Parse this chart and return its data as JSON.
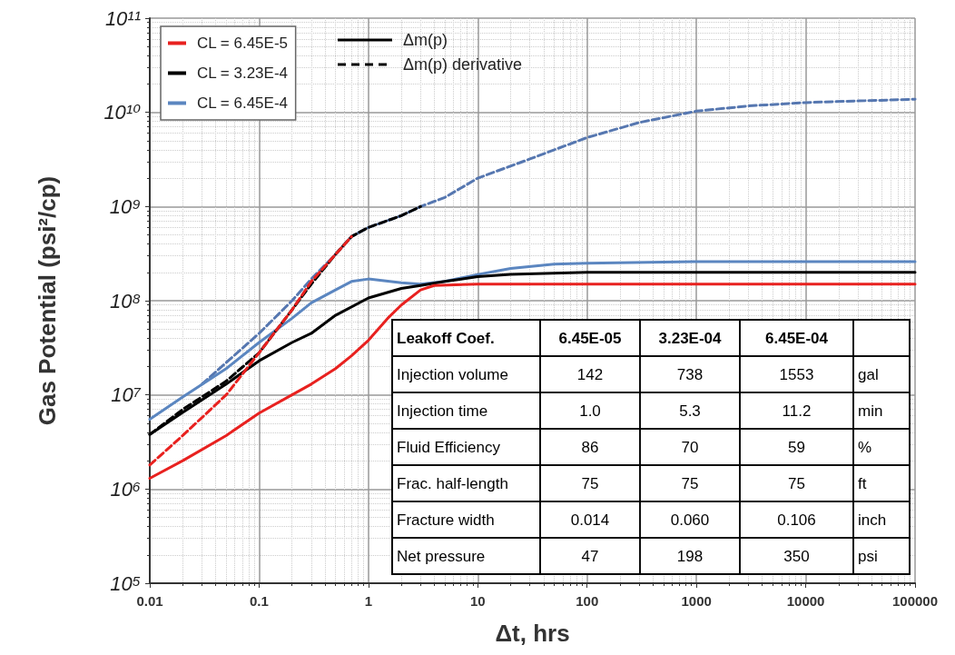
{
  "chart_data": {
    "type": "line",
    "xlabel": "Δt, hrs",
    "ylabel": "Gas Potential (psi²/cp)",
    "log": "xy",
    "grid": true,
    "legend": "top left",
    "marker": "none",
    "xlim": [
      0.01,
      100000
    ],
    "xticks": [
      0.01,
      0.1,
      1,
      10,
      100,
      1000,
      10000,
      100000
    ],
    "ylim": [
      100000,
      100000000000
    ],
    "yticks": [
      {
        "value": 100000,
        "label": "10⁵"
      },
      {
        "value": 1000000,
        "label": "10⁶"
      },
      {
        "value": 10000000,
        "label": "10⁷"
      },
      {
        "value": 100000000,
        "label": "10⁸"
      },
      {
        "value": 1000000000,
        "label": "10⁹"
      },
      {
        "value": 10000000000,
        "label": "10¹⁰"
      },
      {
        "value": 100000000000,
        "label": "10¹¹"
      }
    ],
    "series": [
      {
        "name": "CL = 6.45E-5",
        "color": "#e8211f",
        "line_style": "solid",
        "x": [
          0.01,
          0.02,
          0.05,
          0.1,
          0.2,
          0.3,
          0.5,
          0.7,
          1,
          1.5,
          2,
          3,
          4,
          10,
          100,
          1000,
          10000,
          100000
        ],
        "values": [
          1300000,
          2000000,
          3700000,
          6400000,
          10000000,
          13000000,
          19000000,
          26000000,
          38000000,
          65000000,
          90000000,
          130000000,
          145000000,
          150000000,
          150000000,
          150000000,
          150000000,
          150000000
        ]
      },
      {
        "color": "#e8211f",
        "line_style": "dashed",
        "x": [
          0.01,
          0.02,
          0.05,
          0.1,
          0.2,
          0.3,
          0.5,
          0.7
        ],
        "values": [
          1800000,
          3700000,
          10000000,
          28000000,
          80000000,
          160000000,
          310000000,
          480000000
        ]
      },
      {
        "name": "CL = 3.23E-4",
        "color": "#000000",
        "line_style": "solid",
        "x": [
          0.01,
          0.02,
          0.05,
          0.1,
          0.2,
          0.3,
          0.5,
          1,
          2,
          3,
          5,
          10,
          20,
          100,
          1000,
          10000,
          100000
        ],
        "values": [
          3800000,
          6500000,
          13000000,
          23000000,
          36000000,
          45000000,
          70000000,
          107000000,
          135000000,
          145000000,
          160000000,
          180000000,
          190000000,
          200000000,
          200000000,
          200000000,
          200000000
        ]
      },
      {
        "color": "#000000",
        "line_style": "dashed",
        "x": [
          0.01,
          0.02,
          0.05,
          0.1,
          0.2,
          0.3,
          0.5,
          0.7,
          1,
          2,
          3
        ],
        "values": [
          3800000,
          7000000,
          14000000,
          28000000,
          80000000,
          150000000,
          310000000,
          480000000,
          600000000,
          800000000,
          1000000000
        ]
      },
      {
        "name": "CL = 6.45E-4",
        "color": "#5b86c0",
        "line_style": "solid",
        "x": [
          0.01,
          0.02,
          0.05,
          0.1,
          0.2,
          0.3,
          0.5,
          0.7,
          1,
          2,
          3,
          5,
          10,
          20,
          50,
          100,
          1000,
          10000,
          100000
        ],
        "values": [
          5500000,
          9500000,
          19000000,
          36000000,
          65000000,
          95000000,
          130000000,
          160000000,
          170000000,
          155000000,
          150000000,
          160000000,
          190000000,
          220000000,
          245000000,
          250000000,
          260000000,
          260000000,
          260000000
        ]
      },
      {
        "color": "#5677b0",
        "line_style": "dashed",
        "x": [
          0.03,
          0.05,
          0.1,
          0.2,
          0.3,
          0.5,
          0.7,
          1,
          2,
          3,
          5,
          10,
          30,
          100,
          300,
          1000,
          3000,
          10000,
          100000
        ],
        "values": [
          13000000,
          22000000,
          45000000,
          100000000,
          170000000,
          310000000,
          480000000,
          600000000,
          800000000,
          1000000000,
          1250000000,
          2000000000,
          3200000000,
          5400000000,
          7800000000,
          10300000000,
          11700000000,
          12700000000,
          13800000000
        ]
      }
    ],
    "annotations": [
      "Δm(p)",
      "Δm(p) derivative",
      "Leakoff Coef.",
      "6.45E-05",
      "3.23E-04",
      "6.45E-04",
      "Injection volume",
      "142",
      "738",
      "1553",
      "gal",
      "Injection time",
      "1.0",
      "5.3",
      "11.2",
      "min",
      "Fluid Efficiency",
      "86",
      "70",
      "59",
      "%",
      "Frac. half-length",
      "75",
      "75",
      "75",
      "ft",
      "Fracture width",
      "0.014",
      "0.060",
      "0.106",
      "inch",
      "Net pressure",
      "47",
      "198",
      "350",
      "psi"
    ]
  }
}
